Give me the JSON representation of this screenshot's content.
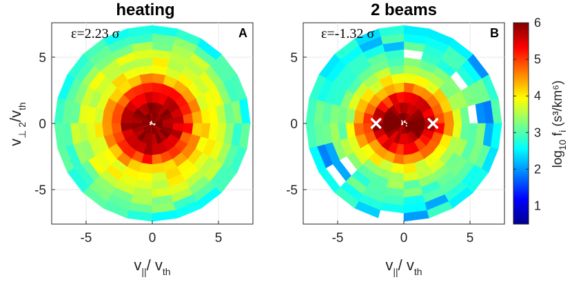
{
  "chart_data": [
    {
      "type": "heatmap",
      "projection": "polar",
      "title": "heating",
      "panel_label": "A",
      "annotation": "ε=2.23 σ",
      "xlabel": "v_||/ v_th",
      "ylabel": "v_⊥2/v_th",
      "xlim": [
        -7.6,
        7.6
      ],
      "ylim": [
        -7.6,
        7.6
      ],
      "xticks": [
        -5,
        0,
        5
      ],
      "yticks": [
        -5,
        0,
        5
      ],
      "grid": true,
      "radial_edges": [
        0,
        0.8,
        1.6,
        2.4,
        3.1,
        3.8,
        4.4,
        5.0,
        5.6,
        6.2,
        6.8,
        7.4
      ],
      "radial_log10_f": [
        6.0,
        5.9,
        5.6,
        5.0,
        4.4,
        4.0,
        3.8,
        3.6,
        3.4,
        3.1,
        2.8
      ],
      "angular_bins": 24,
      "markers": []
    },
    {
      "type": "heatmap",
      "projection": "polar",
      "title": "2 beams",
      "panel_label": "B",
      "annotation": "ε=-1.32 σ",
      "xlabel": "v_||/ v_th",
      "ylabel": "",
      "xlim": [
        -7.6,
        7.6
      ],
      "ylim": [
        -7.6,
        7.6
      ],
      "xticks": [
        -5,
        0,
        5
      ],
      "yticks": [
        -5,
        0,
        5
      ],
      "grid": true,
      "radial_edges": [
        0,
        0.8,
        1.6,
        2.4,
        3.1,
        3.8,
        4.4,
        5.0,
        5.6,
        6.2,
        6.8,
        7.4
      ],
      "radial_log10_f": [
        5.9,
        5.7,
        5.2,
        4.5,
        3.9,
        3.5,
        3.2,
        3.0,
        2.9,
        2.8,
        2.6
      ],
      "angular_bins": 24,
      "markers": [
        {
          "x": -2.1,
          "y": 0,
          "symbol": "x"
        },
        {
          "x": 2.2,
          "y": 0,
          "symbol": "x"
        }
      ]
    }
  ],
  "colorbar": {
    "label_prefix": "log",
    "label_base": "10",
    "label_f": " f",
    "label_i": "i",
    "label_units": " (s³/km⁶)",
    "min": 0.5,
    "max": 6,
    "ticks": [
      1,
      2,
      3,
      4,
      5,
      6
    ],
    "colormap": "jet"
  },
  "labels": {
    "x_main": "v",
    "x_sub": "||",
    "x_tail": "/ v",
    "x_tail_sub": "th",
    "y_main": "v",
    "y_sub": "⊥ 2",
    "y_tail": "/v",
    "y_tail_sub": "th"
  }
}
